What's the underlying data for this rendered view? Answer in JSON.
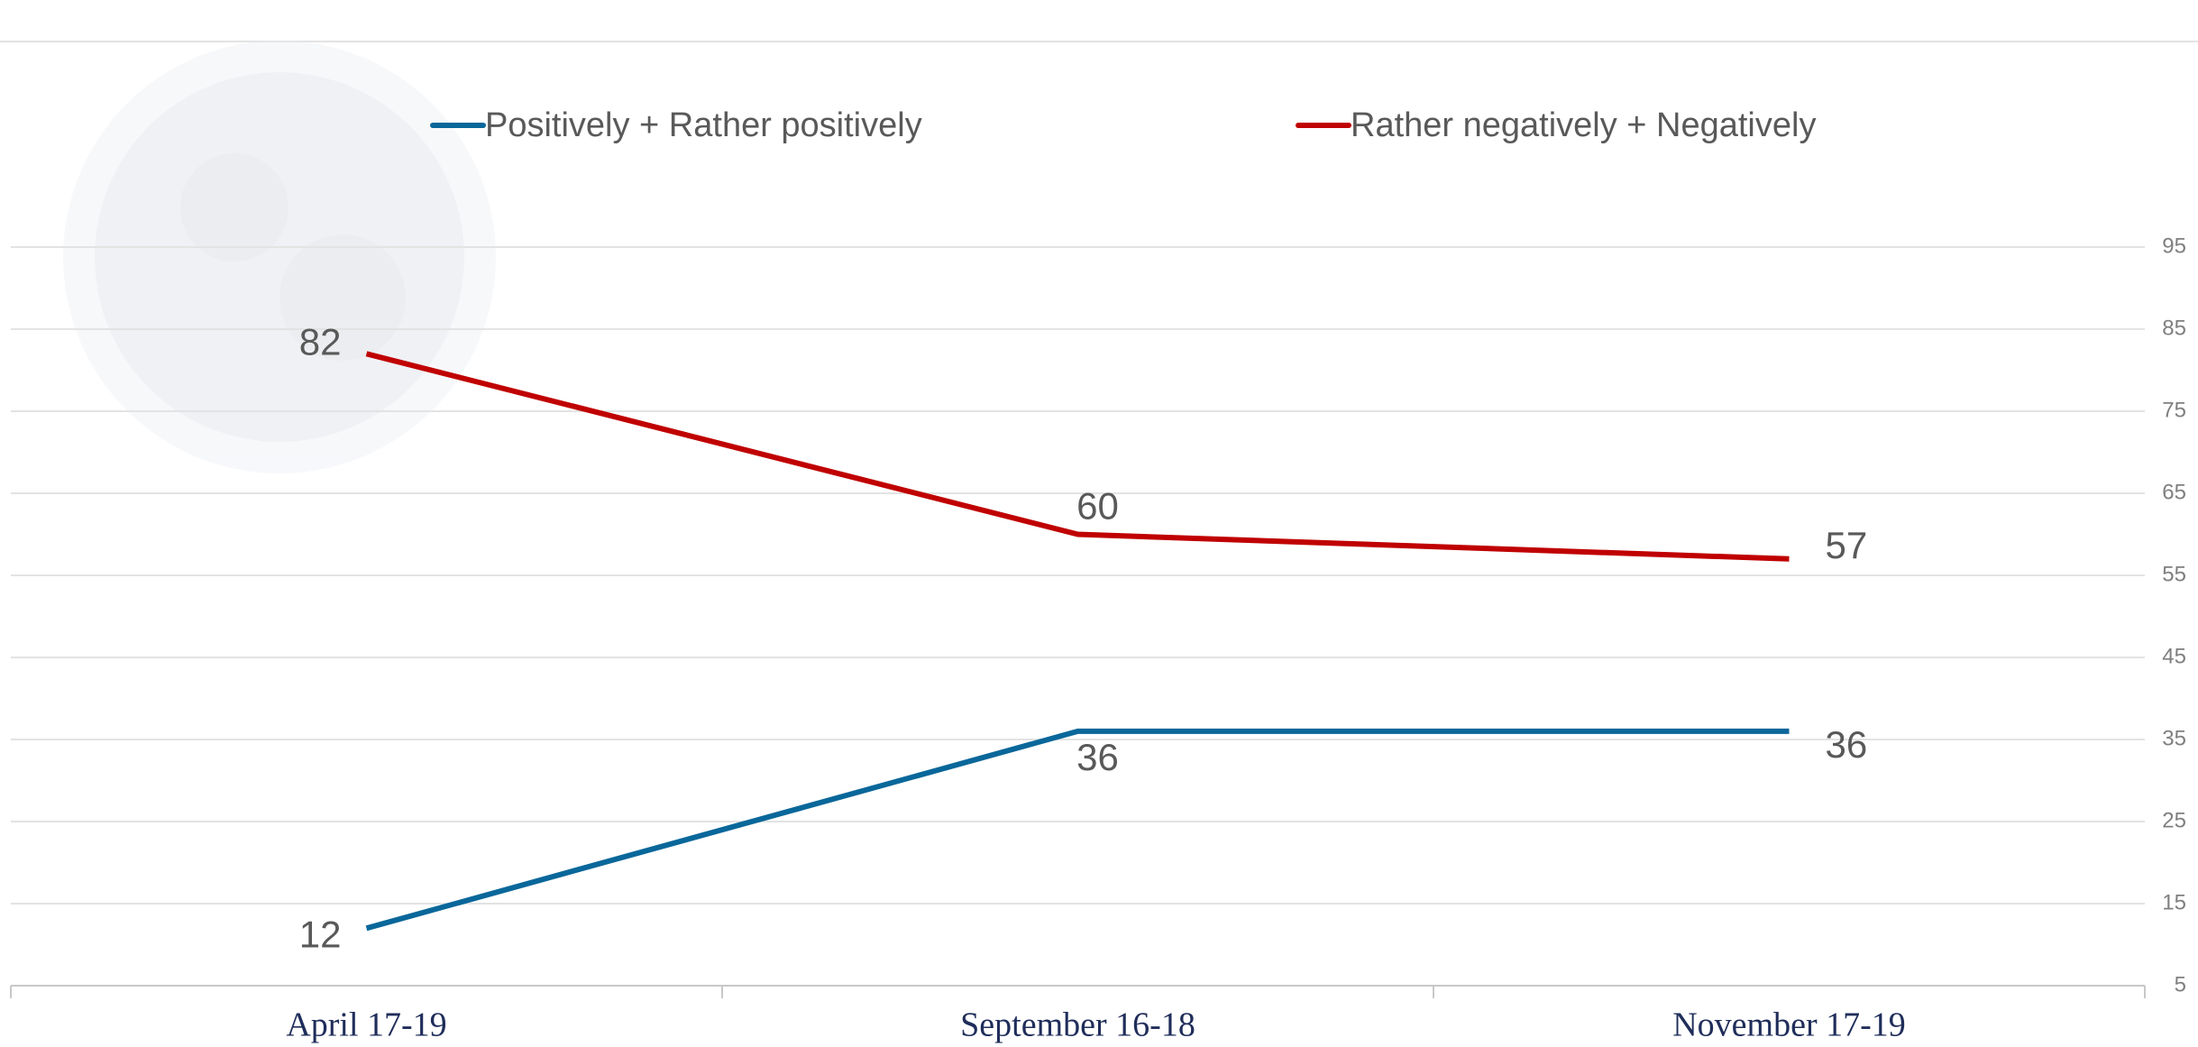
{
  "chart_data": {
    "type": "line",
    "categories": [
      "April 17-19",
      "September 16-18",
      "November 17-19"
    ],
    "series": [
      {
        "name": "Positively + Rather positively",
        "color": "#09679a",
        "values": [
          12,
          36,
          36
        ]
      },
      {
        "name": "Rather negatively + Negatively",
        "color": "#c00000",
        "values": [
          82,
          60,
          57
        ]
      }
    ],
    "ylim": [
      5,
      95
    ],
    "yticks": [
      5,
      15,
      25,
      35,
      45,
      55,
      65,
      75,
      85,
      95
    ],
    "grid": true
  }
}
